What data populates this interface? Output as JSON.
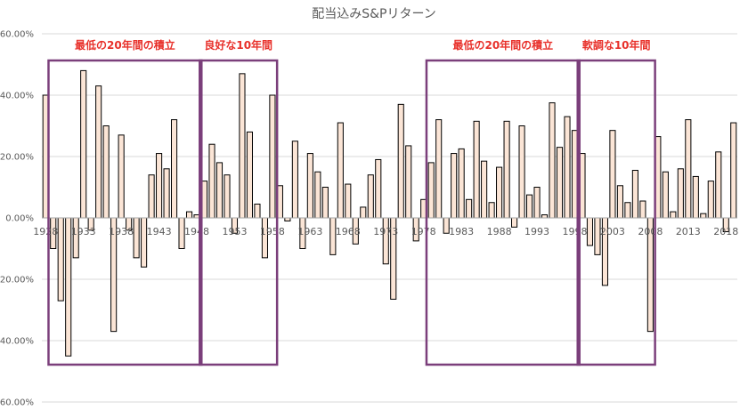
{
  "chart_data": {
    "type": "bar",
    "title": "配当込みS&Pリターン",
    "xlabel": "",
    "ylabel": "",
    "ylim": [
      -0.6,
      0.6
    ],
    "yticks": [
      "60.00%",
      "40.00%",
      "20.00%",
      "0.00%",
      "-20.00%",
      "-40.00%",
      "-60.00%"
    ],
    "xtick_labels": [
      "1928",
      "1933",
      "1938",
      "1943",
      "1948",
      "1953",
      "1958",
      "1963",
      "1968",
      "1973",
      "1978",
      "1983",
      "1988",
      "1993",
      "1998",
      "2003",
      "2008",
      "2013",
      "2018"
    ],
    "first_year": 1928,
    "grid": "horizontal",
    "bar_fill": "#fbe5d6",
    "bar_stroke": "#000000",
    "values": [
      0.4,
      -0.1,
      -0.27,
      -0.45,
      -0.13,
      0.48,
      -0.04,
      0.43,
      0.3,
      -0.37,
      0.27,
      -0.04,
      -0.13,
      -0.16,
      0.14,
      0.21,
      0.16,
      0.32,
      -0.1,
      0.02,
      0.01,
      0.12,
      0.24,
      0.18,
      0.14,
      -0.05,
      0.47,
      0.28,
      0.045,
      -0.13,
      0.4,
      0.105,
      -0.01,
      0.25,
      -0.1,
      0.21,
      0.15,
      0.1,
      -0.12,
      0.31,
      0.11,
      -0.085,
      0.035,
      0.14,
      0.19,
      -0.15,
      -0.265,
      0.37,
      0.235,
      -0.075,
      0.06,
      0.18,
      0.32,
      -0.05,
      0.21,
      0.225,
      0.06,
      0.315,
      0.185,
      0.05,
      0.165,
      0.315,
      -0.03,
      0.3,
      0.075,
      0.1,
      0.01,
      0.375,
      0.23,
      0.33,
      0.285,
      0.21,
      -0.09,
      -0.12,
      -0.22,
      0.285,
      0.105,
      0.05,
      0.155,
      0.055,
      -0.37,
      0.265,
      0.15,
      0.02,
      0.16,
      0.32,
      0.135,
      0.014,
      0.12,
      0.215,
      -0.045,
      0.31
    ]
  },
  "annotations": [
    {
      "label": "最低の20年間の積立",
      "from": 1929,
      "to": 1948,
      "color": "#e8302a",
      "box": "#7b3f7b"
    },
    {
      "label": "良好な10年間",
      "from": 1949,
      "to": 1958,
      "color": "#e8302a",
      "box": "#7b3f7b"
    },
    {
      "label": "最低の20年間の積立",
      "from": 1979,
      "to": 1998,
      "color": "#e8302a",
      "box": "#7b3f7b"
    },
    {
      "label": "軟調な10年間",
      "from": 1999,
      "to": 2008,
      "color": "#e8302a",
      "box": "#7b3f7b"
    }
  ]
}
